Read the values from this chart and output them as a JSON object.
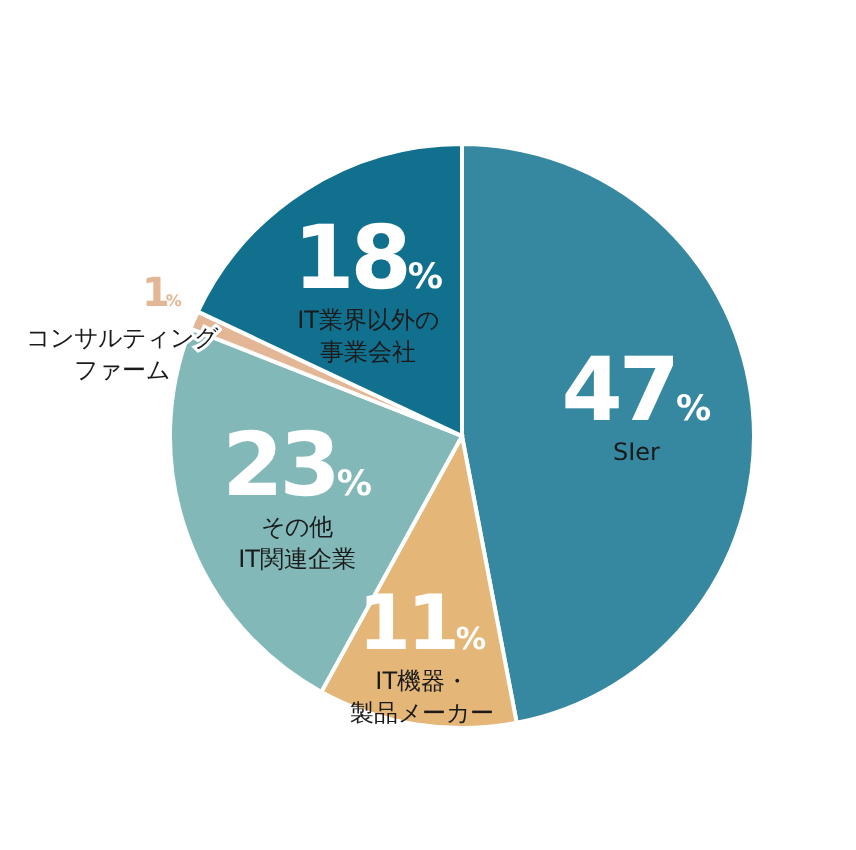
{
  "chart_data": {
    "type": "pie",
    "categories": [
      "SIer",
      "IT機器・製品メーカー",
      "その他IT関連企業",
      "コンサルティングファーム",
      "IT業界以外の事業会社"
    ],
    "values": [
      47,
      11,
      23,
      1,
      18
    ],
    "colors": [
      "#3688a0",
      "#e4b677",
      "#82b8b8",
      "#e3b796",
      "#12708f"
    ],
    "value_labels": [
      "47%",
      "11%",
      "23%",
      "1%",
      "18%"
    ]
  }
}
